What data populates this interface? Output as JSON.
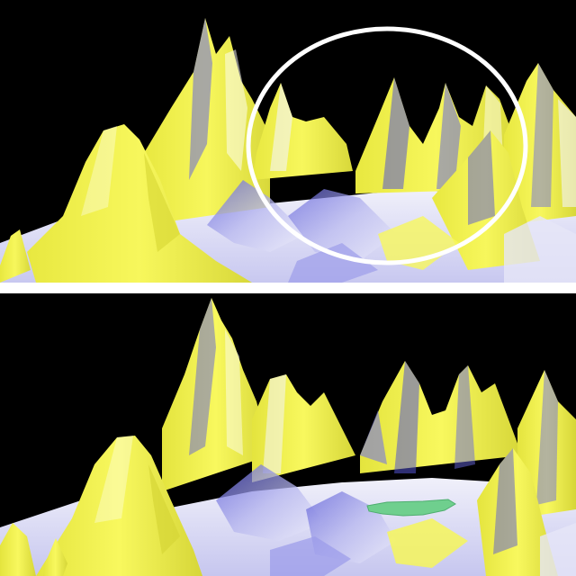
{
  "colors": {
    "background": "#000000",
    "terrain_yellow": "#f2f24a",
    "terrain_blue": "#6c6ce0",
    "terrain_white": "#f4f4fa",
    "highlight_circle": "#ffffff",
    "lake_green": "#6fcf8e",
    "separator": "#ffffff"
  },
  "panels": [
    {
      "id": "top",
      "annotation": "circle",
      "icon": "terrain-3d-render"
    },
    {
      "id": "bottom",
      "annotation": "green-lake",
      "icon": "terrain-3d-render"
    }
  ]
}
